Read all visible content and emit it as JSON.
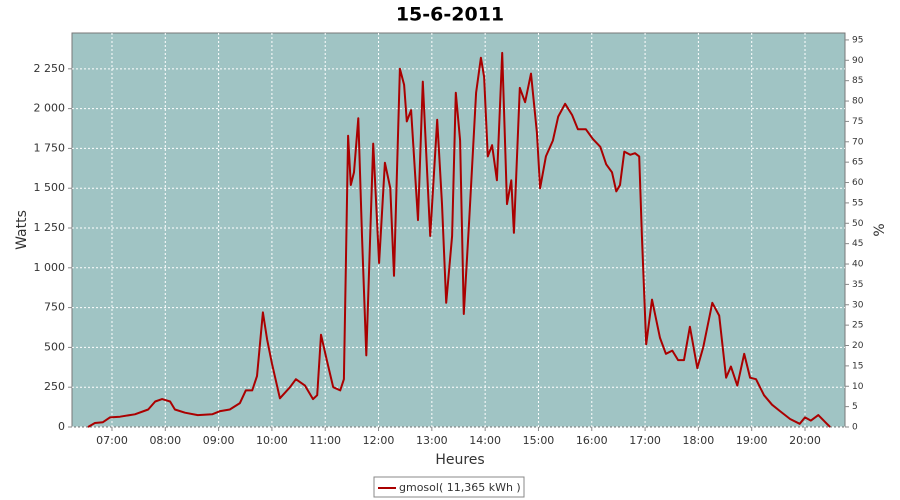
{
  "chart_data": {
    "type": "line",
    "title": "15-6-2011",
    "y_label": "Watts",
    "x_label": "Heures",
    "y2_label": "%",
    "xlim": [
      6.25,
      20.75
    ],
    "xticks": [
      {
        "value": 7,
        "label": "07:00"
      },
      {
        "value": 8,
        "label": "08:00"
      },
      {
        "value": 9,
        "label": "09:00"
      },
      {
        "value": 10,
        "label": "10:00"
      },
      {
        "value": 11,
        "label": "11:00"
      },
      {
        "value": 12,
        "label": "12:00"
      },
      {
        "value": 13,
        "label": "13:00"
      },
      {
        "value": 14,
        "label": "14:00"
      },
      {
        "value": 15,
        "label": "15:00"
      },
      {
        "value": 16,
        "label": "16:00"
      },
      {
        "value": 17,
        "label": "17:00"
      },
      {
        "value": 18,
        "label": "18:00"
      },
      {
        "value": 19,
        "label": "19:00"
      },
      {
        "value": 20,
        "label": "20:00"
      }
    ],
    "ylim": [
      0,
      2475
    ],
    "yticks": [
      0,
      250,
      500,
      750,
      {
        "value": 1000,
        "label": "1 000"
      },
      {
        "value": 1250,
        "label": "1 250"
      },
      {
        "value": 1500,
        "label": "1 500"
      },
      {
        "value": 1750,
        "label": "1 750"
      },
      {
        "value": 2000,
        "label": "2 000"
      },
      {
        "value": 2250,
        "label": "2 250"
      }
    ],
    "y2lim": [
      0,
      96.7
    ],
    "y2ticks": [
      0,
      5,
      10,
      15,
      20,
      25,
      30,
      35,
      40,
      45,
      50,
      55,
      60,
      65,
      70,
      75,
      80,
      85,
      90,
      95
    ],
    "grid": true,
    "legend": "bottom",
    "x": [
      6.55,
      6.68,
      6.83,
      6.96,
      7.15,
      7.43,
      7.68,
      7.81,
      7.94,
      8.09,
      8.18,
      8.37,
      8.61,
      8.88,
      9.03,
      9.21,
      9.4,
      9.51,
      9.63,
      9.72,
      9.83,
      9.91,
      10.0,
      10.15,
      10.34,
      10.45,
      10.62,
      10.77,
      10.85,
      10.92,
      11.03,
      11.15,
      11.28,
      11.35,
      11.43,
      11.48,
      11.54,
      11.62,
      11.69,
      11.77,
      11.9,
      12.01,
      12.12,
      12.22,
      12.29,
      12.4,
      12.48,
      12.53,
      12.61,
      12.74,
      12.83,
      12.97,
      13.1,
      13.19,
      13.27,
      13.38,
      13.45,
      13.53,
      13.6,
      13.7,
      13.83,
      13.92,
      13.98,
      14.05,
      14.13,
      14.22,
      14.32,
      14.41,
      14.49,
      14.54,
      14.65,
      14.75,
      14.86,
      14.97,
      15.03,
      15.14,
      15.27,
      15.37,
      15.5,
      15.63,
      15.74,
      15.89,
      16.02,
      16.16,
      16.27,
      16.38,
      16.46,
      16.53,
      16.61,
      16.72,
      16.81,
      16.89,
      16.94,
      17.02,
      17.13,
      17.28,
      17.39,
      17.51,
      17.62,
      17.73,
      17.84,
      17.98,
      18.09,
      18.26,
      18.39,
      18.52,
      18.61,
      18.73,
      18.86,
      18.97,
      19.08,
      19.23,
      19.38,
      19.53,
      19.72,
      19.9,
      20.0,
      20.11,
      20.25,
      20.38,
      20.47
    ],
    "series": [
      {
        "name": "gmosol( 11,365 kWh )",
        "color": "#aa0000",
        "values": [
          0,
          25,
          30,
          60,
          65,
          80,
          110,
          160,
          175,
          160,
          110,
          90,
          75,
          80,
          100,
          110,
          150,
          230,
          230,
          320,
          720,
          550,
          400,
          180,
          250,
          300,
          260,
          175,
          200,
          580,
          420,
          250,
          230,
          300,
          1830,
          1520,
          1600,
          1940,
          1200,
          450,
          1780,
          1030,
          1660,
          1500,
          950,
          2250,
          2150,
          1920,
          1990,
          1300,
          2170,
          1200,
          1930,
          1400,
          780,
          1200,
          2100,
          1800,
          710,
          1300,
          2100,
          2320,
          2200,
          1700,
          1770,
          1550,
          2350,
          1400,
          1550,
          1220,
          2130,
          2040,
          2220,
          1850,
          1500,
          1700,
          1800,
          1950,
          2030,
          1960,
          1870,
          1870,
          1810,
          1760,
          1650,
          1600,
          1480,
          1520,
          1730,
          1710,
          1720,
          1700,
          1200,
          520,
          800,
          560,
          460,
          480,
          420,
          420,
          630,
          370,
          500,
          780,
          700,
          310,
          380,
          260,
          460,
          310,
          300,
          200,
          140,
          100,
          50,
          20,
          60,
          40,
          75,
          30,
          0
        ]
      }
    ]
  }
}
